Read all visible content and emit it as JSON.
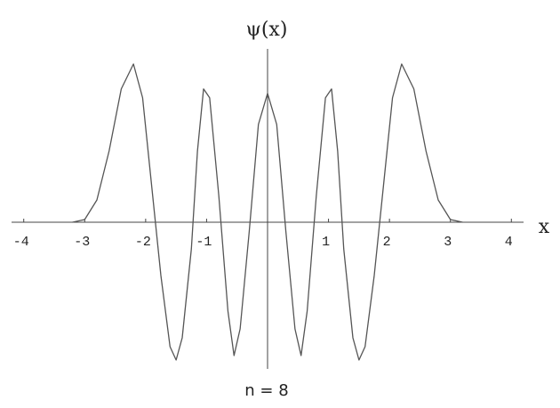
{
  "chart_data": {
    "type": "line",
    "title": "ψ(x)",
    "x_label": "x",
    "caption": "n = 8",
    "x": [
      -3.2,
      -3.0,
      -2.8,
      -2.6,
      -2.4,
      -2.2,
      -2.05,
      -1.9,
      -1.75,
      -1.6,
      -1.5,
      -1.4,
      -1.25,
      -1.15,
      -1.05,
      -0.95,
      -0.8,
      -0.65,
      -0.55,
      -0.45,
      -0.3,
      -0.15,
      0,
      0.15,
      0.3,
      0.45,
      0.55,
      0.65,
      0.8,
      0.95,
      1.05,
      1.15,
      1.25,
      1.4,
      1.5,
      1.6,
      1.75,
      1.9,
      2.05,
      2.2,
      2.4,
      2.6,
      2.8,
      3.0,
      3.2
    ],
    "values": [
      0,
      0.03,
      0.25,
      0.8,
      1.5,
      1.78,
      1.4,
      0.4,
      -0.6,
      -1.4,
      -1.55,
      -1.3,
      -0.3,
      0.8,
      1.5,
      1.4,
      0.3,
      -1.0,
      -1.5,
      -1.2,
      -0.1,
      1.1,
      1.45,
      1.1,
      -0.1,
      -1.2,
      -1.5,
      -1.0,
      0.3,
      1.4,
      1.5,
      0.8,
      -0.3,
      -1.3,
      -1.55,
      -1.4,
      -0.6,
      0.4,
      1.4,
      1.78,
      1.5,
      0.8,
      0.25,
      0.03,
      0
    ],
    "color": "#555555",
    "xlim": [
      -4.2,
      4.2
    ],
    "ylim": [
      -1.65,
      1.95
    ],
    "xticks": [
      -4,
      -3,
      -2,
      -1,
      1,
      2,
      3,
      4
    ]
  }
}
